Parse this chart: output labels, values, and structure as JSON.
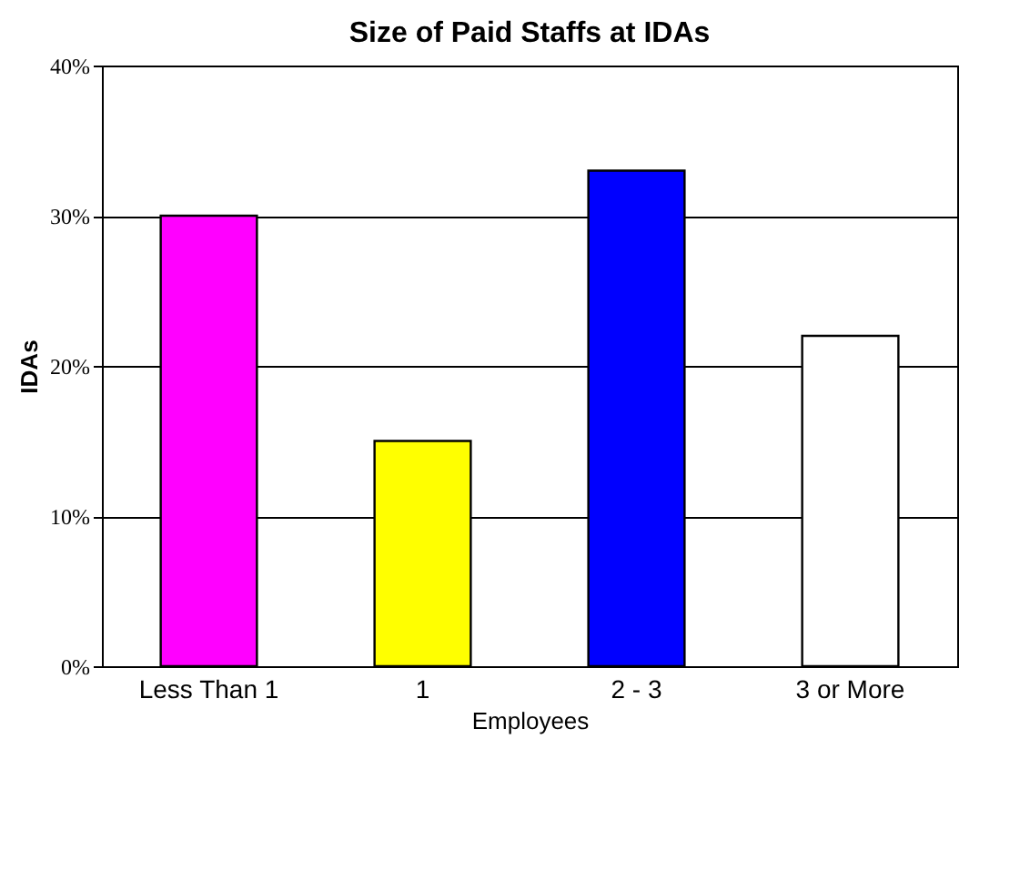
{
  "chart_data": {
    "type": "bar",
    "title": "Size of Paid Staffs at IDAs",
    "xlabel": "Employees",
    "ylabel": "IDAs",
    "categories": [
      "Less Than 1",
      "1",
      "2 - 3",
      "3 or More"
    ],
    "values": [
      30,
      15,
      33,
      22
    ],
    "colors": [
      "#ff00ff",
      "#ffff00",
      "#0000ff",
      "#ffffff"
    ],
    "ylim": [
      0,
      40
    ],
    "yticks": [
      {
        "value": 0,
        "label": "0%"
      },
      {
        "value": 10,
        "label": "10%"
      },
      {
        "value": 20,
        "label": "20%"
      },
      {
        "value": 30,
        "label": "30%"
      },
      {
        "value": 40,
        "label": "40%"
      }
    ],
    "grid": "y"
  }
}
